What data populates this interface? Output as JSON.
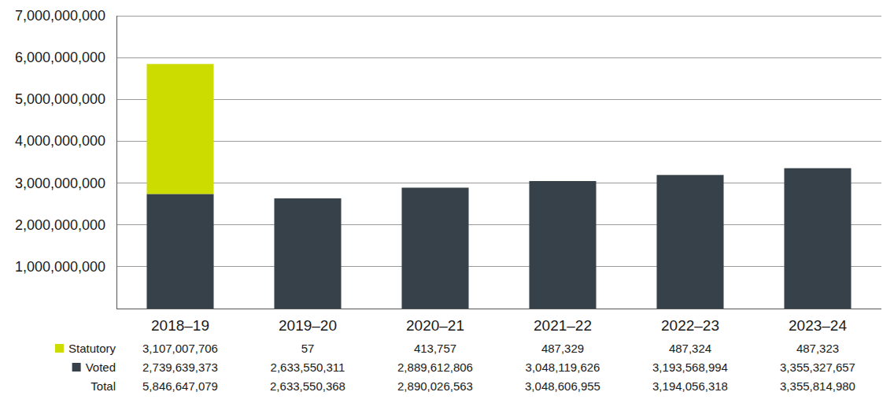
{
  "chart_data": {
    "type": "bar",
    "stacked": true,
    "grid": true,
    "categories": [
      "2018–19",
      "2019–20",
      "2020–21",
      "2021–22",
      "2022–23",
      "2023–24"
    ],
    "series": [
      {
        "name": "Statutory",
        "color": "#cddc00",
        "values": [
          3107007706,
          57,
          413757,
          487329,
          487324,
          487323
        ],
        "value_labels": [
          "3,107,007,706",
          "57",
          "413,757",
          "487,329",
          "487,324",
          "487,323"
        ]
      },
      {
        "name": "Voted",
        "color": "#37414a",
        "values": [
          2739639373,
          2633550311,
          2889612806,
          3048119626,
          3193568994,
          3355327657
        ],
        "value_labels": [
          "2,739,639,373",
          "2,633,550,311",
          "2,889,612,806",
          "3,048,119,626",
          "3,193,568,994",
          "3,355,327,657"
        ]
      }
    ],
    "totals": {
      "name": "Total",
      "values": [
        5846647079,
        2633550368,
        2890026563,
        3048606955,
        3194056318,
        3355814980
      ],
      "value_labels": [
        "5,846,647,079",
        "2,633,550,368",
        "2,890,026,563",
        "3,048,606,955",
        "3,194,056,318",
        "3,355,814,980"
      ]
    },
    "ylim": [
      0,
      7000000000
    ],
    "yticks": [
      {
        "value": 1000000000,
        "label": "1,000,000,000"
      },
      {
        "value": 2000000000,
        "label": "2,000,000,000"
      },
      {
        "value": 3000000000,
        "label": "3,000,000,000"
      },
      {
        "value": 4000000000,
        "label": "4,000,000,000"
      },
      {
        "value": 5000000000,
        "label": "5,000,000,000"
      },
      {
        "value": 6000000000,
        "label": "6,000,000,000"
      },
      {
        "value": 7000000000,
        "label": "7,000,000,000"
      }
    ]
  }
}
